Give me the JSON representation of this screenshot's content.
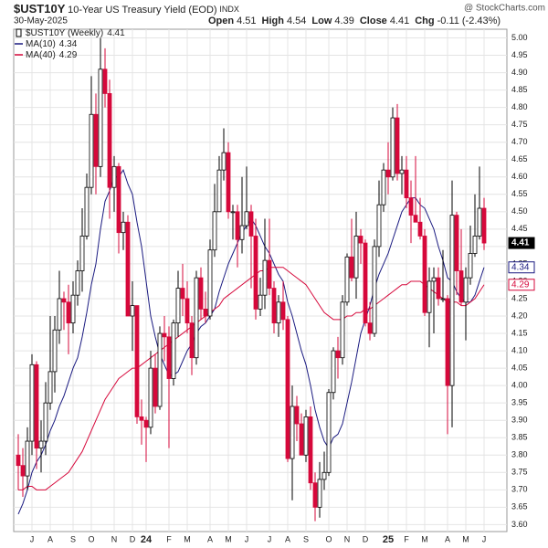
{
  "chart_data": {
    "type": "candlestick",
    "symbol": "$UST10Y",
    "title": "10-Year US Treasury Yield (EOD)",
    "exchange": "INDX",
    "source": "@ StockCharts.com",
    "date": "30-May-2025",
    "quote": [
      {
        "label": "Open",
        "value": 4.51
      },
      {
        "label": "High",
        "value": 4.54
      },
      {
        "label": "Low",
        "value": 4.39
      },
      {
        "label": "Close",
        "value": 4.41
      },
      {
        "label": "Chg",
        "value": -0.11
      }
    ],
    "change_pct": {
      "value": -2.43,
      "label": "(-2.43%)"
    },
    "categories": [
      null,
      null,
      null,
      "J",
      null,
      null,
      null,
      "A",
      null,
      null,
      null,
      null,
      "S",
      null,
      null,
      null,
      "O",
      null,
      null,
      null,
      null,
      "N",
      null,
      null,
      null,
      "D",
      null,
      null,
      "24",
      null,
      null,
      null,
      null,
      "F",
      null,
      null,
      null,
      "M",
      null,
      null,
      null,
      null,
      "A",
      null,
      null,
      null,
      "M",
      null,
      null,
      null,
      "J",
      null,
      null,
      null,
      null,
      "J",
      null,
      null,
      null,
      "A",
      null,
      null,
      null,
      "S",
      null,
      null,
      null,
      null,
      "O",
      null,
      null,
      null,
      "N",
      null,
      null,
      null,
      "D",
      null,
      null,
      null,
      null,
      "25",
      null,
      null,
      null,
      "F",
      null,
      null,
      null,
      "M",
      null,
      null,
      null,
      null,
      "A",
      null,
      null,
      null,
      "M",
      null,
      null,
      null,
      "J"
    ],
    "series": [
      {
        "name": "$UST10Y (Weekly)",
        "last": 4.41,
        "up_color": "#000000",
        "down_color": "#d6083b",
        "open": [
          3.8,
          3.77,
          3.74,
          3.84,
          4.06,
          3.82,
          3.84,
          3.95,
          4.04,
          4.16,
          4.25,
          4.24,
          4.18,
          4.26,
          4.33,
          4.43,
          4.57,
          4.78,
          4.63,
          4.91,
          4.84,
          4.57,
          4.63,
          4.44,
          4.47,
          4.2,
          4.23,
          3.91,
          3.9,
          3.88,
          4.05,
          3.94,
          4.15,
          4.14,
          4.02,
          4.18,
          4.28,
          4.25,
          4.18,
          4.08,
          4.31,
          4.22,
          4.2,
          4.39,
          4.5,
          4.62,
          4.67,
          4.5,
          4.5,
          4.42,
          4.46,
          4.5,
          4.43,
          4.22,
          4.26,
          4.36,
          4.28,
          4.18,
          4.24,
          4.19,
          3.79,
          3.94,
          3.89,
          3.8,
          3.91,
          3.72,
          3.65,
          3.73,
          3.75,
          3.98,
          4.1,
          4.08,
          4.24,
          4.37,
          4.31,
          4.43,
          4.41,
          4.18,
          4.15,
          4.4,
          4.52,
          4.62,
          4.6,
          4.77,
          4.61,
          4.62,
          4.54,
          4.49,
          4.47,
          4.43,
          4.21,
          4.3,
          4.31,
          4.25,
          4.25,
          4.0,
          4.49,
          4.33,
          4.24,
          4.31,
          4.38,
          4.43,
          4.51
        ],
        "high": [
          3.86,
          3.82,
          3.88,
          4.09,
          4.07,
          3.9,
          4.01,
          4.2,
          4.2,
          4.33,
          4.27,
          4.29,
          4.3,
          4.36,
          4.51,
          4.61,
          4.89,
          4.84,
          5.0,
          4.97,
          4.88,
          4.66,
          4.64,
          4.5,
          4.49,
          4.3,
          4.23,
          3.96,
          3.91,
          4.1,
          4.09,
          4.17,
          4.2,
          4.17,
          4.19,
          4.33,
          4.35,
          4.3,
          4.2,
          4.33,
          4.34,
          4.27,
          4.42,
          4.58,
          4.66,
          4.74,
          4.7,
          4.52,
          4.52,
          4.6,
          4.63,
          4.52,
          4.48,
          4.31,
          4.48,
          4.48,
          4.3,
          4.26,
          4.3,
          4.2,
          4.0,
          3.97,
          3.92,
          3.93,
          3.94,
          3.75,
          3.78,
          3.81,
          3.99,
          4.11,
          4.14,
          4.26,
          4.38,
          4.48,
          4.5,
          4.45,
          4.42,
          4.24,
          4.42,
          4.59,
          4.64,
          4.7,
          4.8,
          4.81,
          4.66,
          4.66,
          4.59,
          4.66,
          4.54,
          4.45,
          4.34,
          4.34,
          4.34,
          4.39,
          4.26,
          4.59,
          4.5,
          4.45,
          4.34,
          4.46,
          4.55,
          4.63,
          4.54
        ],
        "low": [
          3.7,
          3.68,
          3.7,
          3.8,
          3.76,
          3.75,
          3.8,
          3.93,
          3.98,
          4.12,
          4.16,
          4.09,
          4.15,
          4.23,
          4.27,
          4.42,
          4.55,
          4.55,
          4.6,
          4.8,
          4.48,
          4.5,
          4.38,
          4.39,
          4.2,
          4.1,
          3.89,
          3.83,
          3.78,
          3.86,
          3.92,
          3.93,
          4.07,
          3.82,
          4.0,
          4.14,
          4.2,
          4.15,
          4.03,
          4.06,
          4.19,
          4.18,
          4.19,
          4.37,
          4.5,
          4.59,
          4.48,
          4.42,
          4.34,
          4.38,
          4.45,
          4.28,
          4.19,
          4.2,
          4.22,
          4.26,
          4.15,
          4.14,
          4.16,
          3.78,
          3.67,
          3.84,
          3.8,
          3.78,
          3.7,
          3.61,
          3.62,
          3.7,
          3.74,
          3.96,
          4.02,
          4.06,
          4.23,
          4.3,
          4.25,
          4.35,
          4.17,
          4.13,
          4.14,
          4.37,
          4.5,
          4.55,
          4.59,
          4.59,
          4.55,
          4.51,
          4.41,
          4.47,
          4.42,
          4.2,
          4.11,
          4.15,
          4.23,
          4.24,
          3.86,
          3.88,
          4.26,
          4.23,
          4.13,
          4.29,
          4.37,
          4.42,
          4.39
        ],
        "close": [
          3.77,
          3.74,
          3.84,
          4.06,
          3.82,
          3.84,
          3.95,
          4.04,
          4.16,
          4.25,
          4.24,
          4.18,
          4.26,
          4.33,
          4.43,
          4.57,
          4.78,
          4.63,
          4.91,
          4.84,
          4.57,
          4.63,
          4.44,
          4.47,
          4.2,
          4.23,
          3.91,
          3.9,
          3.88,
          4.05,
          3.94,
          4.15,
          4.14,
          4.02,
          4.18,
          4.28,
          4.25,
          4.18,
          4.08,
          4.31,
          4.22,
          4.2,
          4.39,
          4.5,
          4.62,
          4.67,
          4.5,
          4.5,
          4.42,
          4.46,
          4.5,
          4.43,
          4.22,
          4.26,
          4.36,
          4.28,
          4.18,
          4.24,
          4.19,
          3.79,
          3.94,
          3.89,
          3.8,
          3.91,
          3.72,
          3.65,
          3.73,
          3.75,
          3.98,
          4.1,
          4.08,
          4.24,
          4.37,
          4.31,
          4.43,
          4.41,
          4.18,
          4.15,
          4.4,
          4.52,
          4.62,
          4.6,
          4.77,
          4.61,
          4.62,
          4.54,
          4.49,
          4.47,
          4.43,
          4.21,
          4.3,
          4.31,
          4.25,
          4.25,
          4.0,
          4.49,
          4.33,
          4.24,
          4.31,
          4.38,
          4.43,
          4.51,
          4.41
        ]
      },
      {
        "name": "MA(10)",
        "last": 4.34,
        "color": "#1a1a80",
        "values": [
          3.63,
          3.66,
          3.7,
          3.75,
          3.78,
          3.8,
          3.83,
          3.87,
          3.9,
          3.94,
          3.97,
          4.01,
          4.05,
          4.08,
          4.14,
          4.21,
          4.29,
          4.35,
          4.45,
          4.53,
          4.56,
          4.6,
          4.6,
          4.62,
          4.58,
          4.55,
          4.47,
          4.4,
          4.3,
          4.2,
          4.14,
          4.09,
          4.06,
          4.03,
          4.03,
          4.04,
          4.07,
          4.1,
          4.12,
          4.15,
          4.17,
          4.18,
          4.2,
          4.22,
          4.27,
          4.31,
          4.35,
          4.38,
          4.41,
          4.44,
          4.46,
          4.48,
          4.46,
          4.43,
          4.4,
          4.38,
          4.35,
          4.32,
          4.3,
          4.24,
          4.2,
          4.15,
          4.1,
          4.06,
          4.0,
          3.93,
          3.88,
          3.84,
          3.82,
          3.85,
          3.86,
          3.89,
          3.95,
          4.01,
          4.08,
          4.15,
          4.19,
          4.23,
          4.28,
          4.32,
          4.35,
          4.38,
          4.42,
          4.46,
          4.5,
          4.52,
          4.54,
          4.54,
          4.52,
          4.51,
          4.48,
          4.45,
          4.4,
          4.36,
          4.31,
          4.3,
          4.27,
          4.25,
          4.24,
          4.24,
          4.26,
          4.3,
          4.34
        ]
      },
      {
        "name": "MA(40)",
        "last": 4.29,
        "color": "#d6083b",
        "values": [
          3.7,
          3.7,
          3.71,
          3.71,
          3.7,
          3.7,
          3.7,
          3.71,
          3.72,
          3.73,
          3.74,
          3.75,
          3.77,
          3.79,
          3.81,
          3.84,
          3.87,
          3.9,
          3.93,
          3.96,
          3.98,
          4.0,
          4.02,
          4.03,
          4.04,
          4.05,
          4.05,
          4.06,
          4.07,
          4.08,
          4.09,
          4.1,
          4.11,
          4.12,
          4.13,
          4.14,
          4.15,
          4.16,
          4.17,
          4.18,
          4.19,
          4.2,
          4.21,
          4.22,
          4.23,
          4.25,
          4.26,
          4.27,
          4.28,
          4.29,
          4.3,
          4.31,
          4.32,
          4.33,
          4.33,
          4.34,
          4.34,
          4.34,
          4.34,
          4.33,
          4.32,
          4.31,
          4.3,
          4.29,
          4.27,
          4.25,
          4.23,
          4.21,
          4.2,
          4.19,
          4.19,
          4.19,
          4.2,
          4.2,
          4.21,
          4.21,
          4.22,
          4.22,
          4.23,
          4.24,
          4.25,
          4.26,
          4.27,
          4.28,
          4.29,
          4.29,
          4.3,
          4.3,
          4.3,
          4.29,
          4.28,
          4.27,
          4.26,
          4.25,
          4.24,
          4.24,
          4.24,
          4.23,
          4.23,
          4.24,
          4.25,
          4.27,
          4.29
        ]
      }
    ],
    "ylim": [
      3.58,
      5.025
    ],
    "yticks": [
      {
        "value": 3.6,
        "label": "3.60"
      },
      3.65,
      {
        "value": 3.7,
        "label": "3.70"
      },
      3.75,
      {
        "value": 3.8,
        "label": "3.80"
      },
      3.85,
      {
        "value": 3.9,
        "label": "3.90"
      },
      3.95,
      {
        "value": 4,
        "label": "4.00"
      },
      4.05,
      {
        "value": 4.1,
        "label": "4.10"
      },
      4.15,
      {
        "value": 4.2,
        "label": "4.20"
      },
      4.25,
      {
        "value": 4.3,
        "label": "4.30"
      },
      4.35,
      {
        "value": 4.4,
        "label": "4.40"
      },
      4.45,
      {
        "value": 4.5,
        "label": "4.50"
      },
      4.55,
      {
        "value": 4.6,
        "label": "4.60"
      },
      4.65,
      {
        "value": 4.7,
        "label": "4.70"
      },
      4.75,
      {
        "value": 4.8,
        "label": "4.80"
      },
      4.85,
      {
        "value": 4.9,
        "label": "4.90"
      },
      4.95,
      {
        "value": 5,
        "label": "5.00"
      }
    ],
    "grid": true
  }
}
